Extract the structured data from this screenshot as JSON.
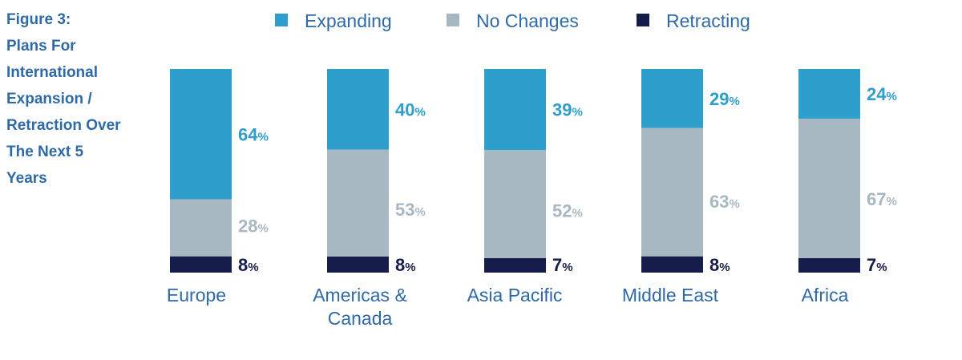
{
  "figure": {
    "title_lines": [
      "Figure 3:",
      "Plans For",
      "International",
      "Expansion /",
      "Retraction Over",
      "The Next 5",
      "Years"
    ]
  },
  "chart_data": {
    "type": "bar",
    "stacked": true,
    "normalized": true,
    "title": "Figure 3: Plans For International Expansion / Retraction Over The Next 5 Years",
    "categories": [
      [
        "Europe"
      ],
      [
        "Americas &",
        "Canada"
      ],
      [
        "Asia Pacific"
      ],
      [
        "Middle East"
      ],
      [
        "Africa"
      ]
    ],
    "series": [
      {
        "name": "Expanding",
        "color": "#2e9fcc",
        "label_color": "#2e9fcc",
        "values": [
          64,
          40,
          39,
          29,
          24
        ]
      },
      {
        "name": "No Changes",
        "color": "#a8b8c2",
        "label_color": "#a8b8c2",
        "values": [
          28,
          53,
          52,
          63,
          67
        ]
      },
      {
        "name": "Retracting",
        "color": "#161d4a",
        "label_color": "#161d4a",
        "values": [
          8,
          8,
          7,
          8,
          7
        ]
      }
    ],
    "unit_suffix": "%",
    "legend_position": "top",
    "grid": false,
    "xlabel": "",
    "ylabel": ""
  }
}
